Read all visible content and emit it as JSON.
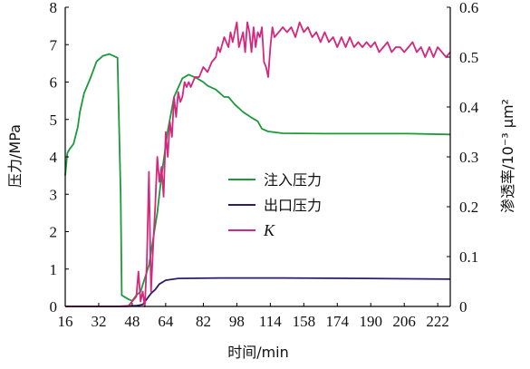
{
  "chart_data": {
    "type": "line",
    "xlabel": "时间/min",
    "ylabel_left": "压力/MPa",
    "ylabel_right": "渗透率/10⁻³ μm²",
    "x_ticks": [
      "16",
      "32",
      "48",
      "64",
      "82",
      "98",
      "114",
      "158",
      "174",
      "190",
      "206",
      "222"
    ],
    "x_tick_positions": [
      16,
      32,
      48,
      64,
      82,
      98,
      114,
      130,
      146,
      162,
      178,
      194
    ],
    "y_left_ticks": [
      "0",
      "1",
      "2",
      "3",
      "4",
      "5",
      "6",
      "7",
      "8"
    ],
    "y_right_ticks": [
      "0",
      "0.1",
      "0.2",
      "0.3",
      "0.4",
      "0.5",
      "0.6"
    ],
    "xlim": [
      16,
      200
    ],
    "ylim_left": [
      0,
      8
    ],
    "ylim_right": [
      0,
      0.6
    ],
    "grid": false,
    "legend_position": "center-right",
    "series": [
      {
        "name": "注入压力",
        "color": "#1a9a3a",
        "axis": "left",
        "points": [
          [
            16,
            3.5
          ],
          [
            17,
            4.1
          ],
          [
            18,
            4.2
          ],
          [
            20,
            4.35
          ],
          [
            22,
            4.8
          ],
          [
            23,
            5.2
          ],
          [
            25,
            5.7
          ],
          [
            28,
            6.1
          ],
          [
            31,
            6.55
          ],
          [
            34,
            6.7
          ],
          [
            37,
            6.75
          ],
          [
            39,
            6.7
          ],
          [
            41,
            6.65
          ],
          [
            42.5,
            3.0
          ],
          [
            43,
            0.3
          ],
          [
            46,
            0.2
          ],
          [
            48,
            0.15
          ],
          [
            50,
            0.3
          ],
          [
            52,
            0.4
          ],
          [
            56,
            1.1
          ],
          [
            60,
            2.5
          ],
          [
            62,
            3.5
          ],
          [
            65,
            4.7
          ],
          [
            68,
            5.6
          ],
          [
            72,
            6.1
          ],
          [
            75,
            6.2
          ],
          [
            79,
            6.1
          ],
          [
            82,
            6.0
          ],
          [
            84,
            5.9
          ],
          [
            88,
            5.8
          ],
          [
            92,
            5.6
          ],
          [
            94,
            5.6
          ],
          [
            97,
            5.4
          ],
          [
            101,
            5.2
          ],
          [
            105,
            5.05
          ],
          [
            108,
            4.95
          ],
          [
            110,
            4.75
          ],
          [
            113,
            4.68
          ],
          [
            120,
            4.63
          ],
          [
            140,
            4.62
          ],
          [
            160,
            4.62
          ],
          [
            180,
            4.62
          ],
          [
            200,
            4.6
          ]
        ]
      },
      {
        "name": "出口压力",
        "color": "#2e1b6e",
        "axis": "left",
        "points": [
          [
            16,
            0
          ],
          [
            40,
            0
          ],
          [
            50,
            0.02
          ],
          [
            53,
            0.05
          ],
          [
            55,
            0.2
          ],
          [
            57,
            0.35
          ],
          [
            59,
            0.45
          ],
          [
            61,
            0.6
          ],
          [
            64,
            0.7
          ],
          [
            70,
            0.75
          ],
          [
            90,
            0.76
          ],
          [
            120,
            0.76
          ],
          [
            160,
            0.75
          ],
          [
            200,
            0.73
          ]
        ]
      },
      {
        "name": "K",
        "color": "#d4287e",
        "axis": "right",
        "points": [
          [
            16,
            0
          ],
          [
            46,
            0
          ],
          [
            50,
            0.02
          ],
          [
            51,
            0.07
          ],
          [
            52,
            0.01
          ],
          [
            53,
            0.03
          ],
          [
            54,
            0.0
          ],
          [
            55,
            0.09
          ],
          [
            56,
            0.27
          ],
          [
            57,
            0.03
          ],
          [
            58,
            0.12
          ],
          [
            59,
            0.2
          ],
          [
            60,
            0.3
          ],
          [
            61,
            0.25
          ],
          [
            62,
            0.28
          ],
          [
            63,
            0.22
          ],
          [
            64,
            0.35
          ],
          [
            65,
            0.3
          ],
          [
            66,
            0.37
          ],
          [
            67,
            0.34
          ],
          [
            68,
            0.42
          ],
          [
            69,
            0.38
          ],
          [
            70,
            0.43
          ],
          [
            71,
            0.41
          ],
          [
            72,
            0.42
          ],
          [
            73,
            0.45
          ],
          [
            74,
            0.44
          ],
          [
            75,
            0.45
          ],
          [
            76,
            0.44
          ],
          [
            78,
            0.46
          ],
          [
            80,
            0.46
          ],
          [
            82,
            0.48
          ],
          [
            84,
            0.47
          ],
          [
            86,
            0.49
          ],
          [
            88,
            0.5
          ],
          [
            89,
            0.52
          ],
          [
            90,
            0.51
          ],
          [
            92,
            0.54
          ],
          [
            94,
            0.52
          ],
          [
            95,
            0.55
          ],
          [
            96,
            0.53
          ],
          [
            98,
            0.57
          ],
          [
            99,
            0.52
          ],
          [
            101,
            0.55
          ],
          [
            102,
            0.51
          ],
          [
            103,
            0.57
          ],
          [
            104,
            0.55
          ],
          [
            105,
            0.51
          ],
          [
            106,
            0.56
          ],
          [
            107,
            0.52
          ],
          [
            108,
            0.55
          ],
          [
            109,
            0.54
          ],
          [
            110,
            0.56
          ],
          [
            111,
            0.49
          ],
          [
            112,
            0.48
          ],
          [
            113,
            0.46
          ],
          [
            114,
            0.52
          ],
          [
            115,
            0.56
          ],
          [
            116,
            0.54
          ],
          [
            118,
            0.55
          ],
          [
            120,
            0.56
          ],
          [
            122,
            0.55
          ],
          [
            124,
            0.56
          ],
          [
            126,
            0.54
          ],
          [
            128,
            0.57
          ],
          [
            130,
            0.55
          ],
          [
            132,
            0.56
          ],
          [
            134,
            0.54
          ],
          [
            136,
            0.55
          ],
          [
            138,
            0.53
          ],
          [
            140,
            0.55
          ],
          [
            142,
            0.53
          ],
          [
            144,
            0.54
          ],
          [
            146,
            0.52
          ],
          [
            148,
            0.54
          ],
          [
            150,
            0.52
          ],
          [
            152,
            0.54
          ],
          [
            154,
            0.52
          ],
          [
            156,
            0.53
          ],
          [
            158,
            0.52
          ],
          [
            160,
            0.53
          ],
          [
            162,
            0.52
          ],
          [
            164,
            0.53
          ],
          [
            166,
            0.51
          ],
          [
            168,
            0.52
          ],
          [
            170,
            0.53
          ],
          [
            172,
            0.51
          ],
          [
            174,
            0.52
          ],
          [
            176,
            0.52
          ],
          [
            178,
            0.51
          ],
          [
            180,
            0.52
          ],
          [
            182,
            0.53
          ],
          [
            184,
            0.51
          ],
          [
            186,
            0.52
          ],
          [
            188,
            0.5
          ],
          [
            190,
            0.52
          ],
          [
            192,
            0.5
          ],
          [
            194,
            0.52
          ],
          [
            196,
            0.51
          ],
          [
            198,
            0.5
          ],
          [
            200,
            0.51
          ]
        ]
      }
    ]
  }
}
